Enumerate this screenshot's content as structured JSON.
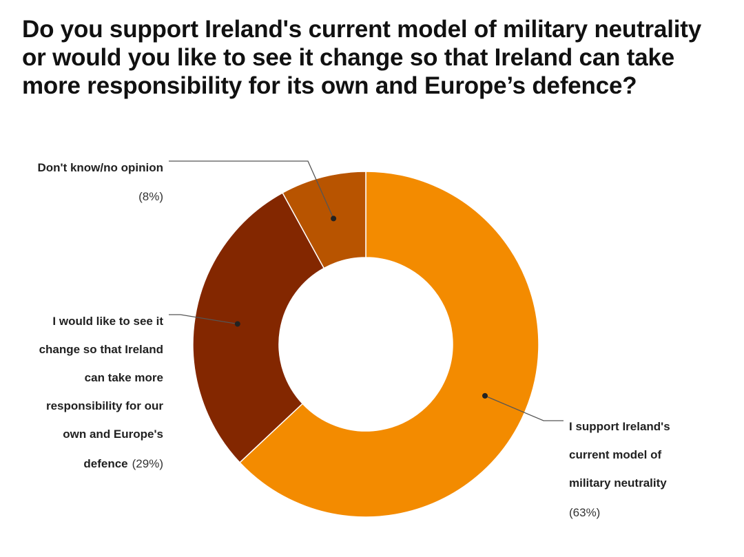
{
  "chart_data": {
    "type": "pie",
    "subtype": "donut",
    "title": "Do you support Ireland's current model of military neutrality or would you like to see it change so that Ireland can take more responsibility for its own and Europe’s defence?",
    "slices": [
      {
        "name": "I support Ireland's current model of military neutrality",
        "label_lines": [
          "I support Ireland's",
          "current model of",
          "military neutrality"
        ],
        "value": 63,
        "pct_text": "(63%)",
        "color": "#f38b00"
      },
      {
        "name": "I would like to see it change so that Ireland can take more responsibility for our own and Europe's defence",
        "label_lines": [
          "I would like to see it",
          "change so that Ireland",
          "can take more",
          "responsibility for our",
          "own and Europe's",
          "defence"
        ],
        "value": 29,
        "pct_text": "(29%)",
        "color": "#832700"
      },
      {
        "name": "Don't know/no opinion",
        "label_lines": [
          "Don't know/no opinion"
        ],
        "value": 8,
        "pct_text": "(8%)",
        "color": "#b85400"
      }
    ]
  }
}
